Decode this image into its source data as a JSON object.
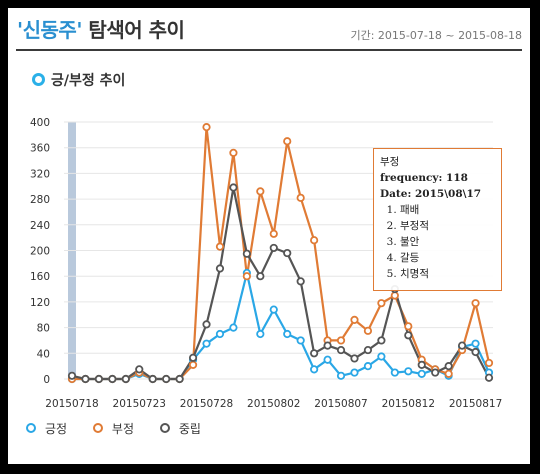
{
  "header": {
    "keyword": "'신동주'",
    "title_suffix": "탐색어 추이",
    "period": "기간: 2015-07-18 ~ 2015-08-18"
  },
  "section": {
    "title": "긍/부정 추이"
  },
  "tooltip": {
    "series": "부정",
    "frequency_line": "frequency: 118",
    "date_line": "Date: 2015\\08\\17",
    "items": [
      "패배",
      "부정적",
      "불안",
      "갈등",
      "치명적"
    ]
  },
  "colors": {
    "positive": "#2aa7e6",
    "negative": "#e07b35",
    "neutral": "#555555",
    "highlight_bar": "#b9c9dc"
  },
  "chart_data": {
    "type": "line",
    "x": [
      "20150718",
      "20150719",
      "20150720",
      "20150721",
      "20150722",
      "20150723",
      "20150724",
      "20150725",
      "20150726",
      "20150727",
      "20150728",
      "20150729",
      "20150730",
      "20150731",
      "20150801",
      "20150802",
      "20150803",
      "20150804",
      "20150805",
      "20150806",
      "20150807",
      "20150808",
      "20150809",
      "20150810",
      "20150811",
      "20150812",
      "20150813",
      "20150814",
      "20150815",
      "20150816",
      "20150817",
      "20150818"
    ],
    "x_tick_labels": [
      "20150718",
      "20150723",
      "20150728",
      "20150802",
      "20150807",
      "20150812",
      "20150817"
    ],
    "x_tick_indices": [
      0,
      5,
      10,
      15,
      20,
      25,
      30
    ],
    "y_ticks": [
      0,
      40,
      80,
      120,
      160,
      200,
      240,
      280,
      320,
      360,
      400
    ],
    "y_tick_labels": [
      "0",
      "40",
      "80",
      "120",
      "160",
      "200",
      "240",
      "280",
      "320",
      "360",
      "400"
    ],
    "ylim": [
      0,
      400
    ],
    "grid": "horizontal",
    "legend": "bottom-left",
    "highlight_index": 0,
    "series": [
      {
        "key": "positive",
        "name": "긍정",
        "values": [
          0,
          0,
          0,
          0,
          0,
          8,
          0,
          0,
          0,
          30,
          55,
          70,
          80,
          165,
          70,
          108,
          70,
          60,
          15,
          30,
          5,
          10,
          20,
          35,
          10,
          12,
          8,
          15,
          5,
          50,
          55,
          10
        ]
      },
      {
        "key": "negative",
        "name": "부정",
        "values": [
          0,
          0,
          0,
          0,
          0,
          10,
          0,
          0,
          0,
          22,
          392,
          206,
          352,
          160,
          292,
          226,
          370,
          282,
          216,
          60,
          60,
          92,
          75,
          118,
          130,
          82,
          30,
          15,
          8,
          45,
          118,
          25
        ]
      },
      {
        "key": "neutral",
        "name": "중립",
        "values": [
          5,
          0,
          0,
          0,
          0,
          15,
          0,
          0,
          0,
          33,
          85,
          172,
          298,
          195,
          160,
          204,
          196,
          152,
          40,
          52,
          45,
          32,
          45,
          60,
          140,
          68,
          22,
          10,
          20,
          52,
          42,
          2
        ]
      }
    ]
  }
}
